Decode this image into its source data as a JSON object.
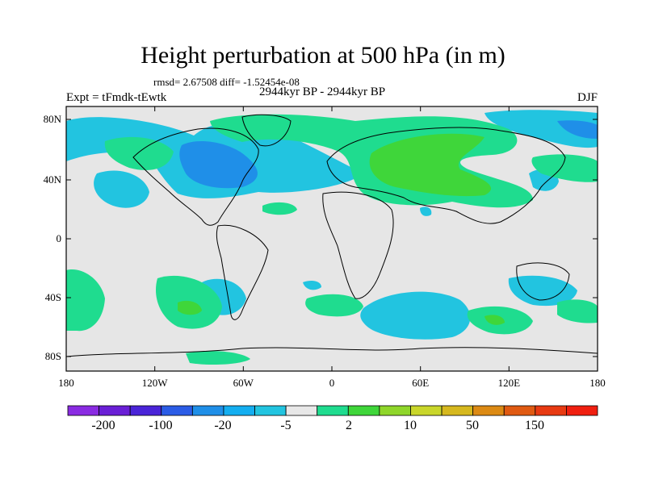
{
  "title": "Height perturbation at 500 hPa (in m)",
  "stats_text": "rmsd= 2.67508 diff= -1.52454e-08",
  "period_text": "2944kyr BP - 2944kyr BP",
  "experiment_text": "Expt = tFmdk-tEwtk",
  "season_text": "DJF",
  "map": {
    "lat_ticks": [
      "80N",
      "40N",
      "0",
      "40S",
      "80S"
    ],
    "lon_ticks": [
      "180",
      "120W",
      "60W",
      "0",
      "60E",
      "120E",
      "180"
    ],
    "background_color": "#e6e6e6"
  },
  "colorbar": {
    "colors": [
      "#8a2be2",
      "#6a1fd6",
      "#4a24d8",
      "#2b5ce6",
      "#1f8fe8",
      "#14aef0",
      "#22c4e0",
      "#e8e8e8",
      "#1fdc8f",
      "#3fd63a",
      "#8fd62a",
      "#c9d62a",
      "#d6b81e",
      "#dc8a14",
      "#e05a12",
      "#e83a12",
      "#f01f10"
    ],
    "labels": [
      "-200",
      "-100",
      "-20",
      "-5",
      "2",
      "10",
      "50",
      "150"
    ]
  }
}
